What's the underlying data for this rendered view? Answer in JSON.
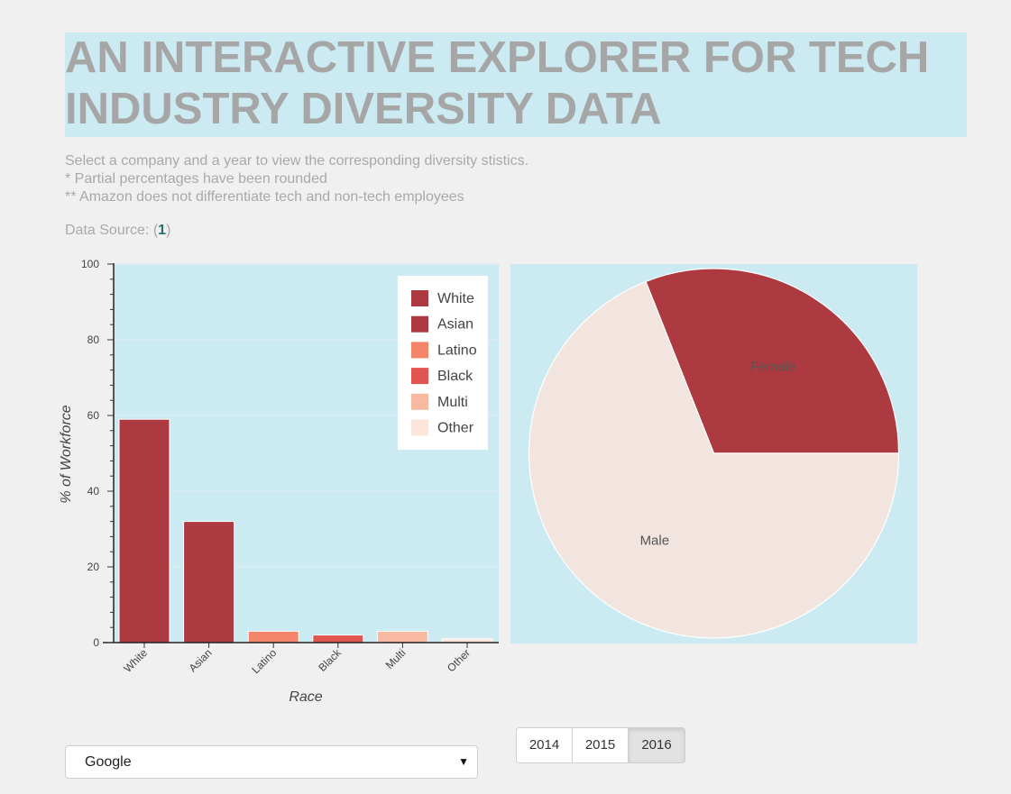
{
  "header": {
    "title_line1": "AN INTERACTIVE EXPLORER FOR TECH",
    "title_line2": "INDUSTRY DIVERSITY DATA"
  },
  "description": {
    "line1": "Select a company and a year to view the corresponding diversity stistics.",
    "line2": "* Partial percentages have been rounded",
    "line3": "** Amazon does not differentiate tech and non-tech employees"
  },
  "source": {
    "prefix": "Data Source: (",
    "link": "1",
    "suffix": ")"
  },
  "colors": {
    "plot_bg": "#cbeaf2",
    "White": "#ad3a40",
    "Asian": "#ad3a40",
    "Latino": "#f4846a",
    "Black": "#e05550",
    "Multi": "#f7b9a2",
    "Other": "#fce6dc",
    "Female": "#ad3a40",
    "Male": "#f2e4de"
  },
  "chart_data": [
    {
      "type": "bar",
      "categories": [
        "White",
        "Asian",
        "Latino",
        "Black",
        "Multi",
        "Other"
      ],
      "values": [
        59,
        32,
        3,
        2,
        3,
        1
      ],
      "xlabel": "Race",
      "ylabel": "% of Workforce",
      "ylim": [
        0,
        100
      ],
      "yticks": [
        0,
        20,
        40,
        60,
        80,
        100
      ],
      "legend": {
        "placement": "top-right",
        "entries": [
          "White",
          "Asian",
          "Latino",
          "Black",
          "Multi",
          "Other"
        ]
      }
    },
    {
      "type": "pie",
      "slices": [
        {
          "label": "Female",
          "value": 31
        },
        {
          "label": "Male",
          "value": 69
        }
      ]
    }
  ],
  "controls": {
    "company_select": {
      "selected": "Google",
      "caret": "▼"
    },
    "years": [
      {
        "label": "2014",
        "active": false
      },
      {
        "label": "2015",
        "active": false
      },
      {
        "label": "2016",
        "active": true
      }
    ]
  }
}
